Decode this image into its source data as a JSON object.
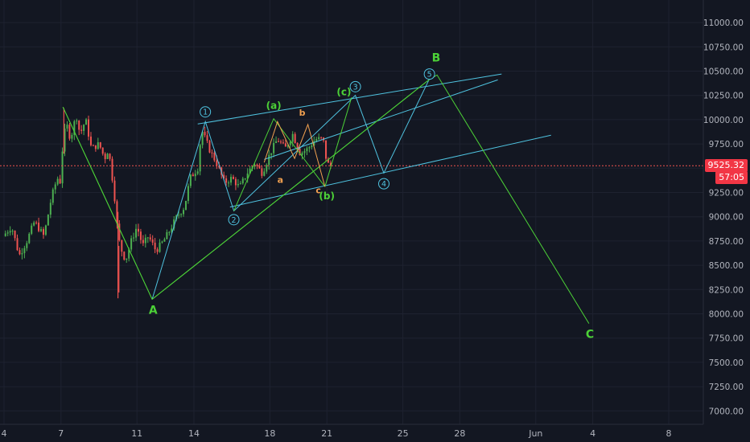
{
  "colors": {
    "background": "#131722",
    "grid": "#1e2230",
    "axis_text": "#b2b5be",
    "bull": "#26a69a",
    "bear": "#ef5350",
    "bull_bar": "#4caf50",
    "channel": "#4fc3e0",
    "green_wave": "#4cd137",
    "orange_wave": "#f0a050",
    "price_line": "#ef5350"
  },
  "last_price": "9525.32",
  "countdown": "57:05",
  "chart_data": {
    "type": "candlestick",
    "title": "",
    "ylim": [
      6930,
      11180
    ],
    "y_ticks": [
      "7000.00",
      "7250.00",
      "7500.00",
      "7750.00",
      "8000.00",
      "8250.00",
      "8500.00",
      "8750.00",
      "9000.00",
      "9250.00",
      "9500.00",
      "9750.00",
      "10000.00",
      "10250.00",
      "10500.00",
      "10750.00",
      "11000.00"
    ],
    "x_ticks": [
      {
        "label": "4",
        "day": 0
      },
      {
        "label": "7",
        "day": 3
      },
      {
        "label": "11",
        "day": 7
      },
      {
        "label": "14",
        "day": 10
      },
      {
        "label": "18",
        "day": 14
      },
      {
        "label": "21",
        "day": 17
      },
      {
        "label": "25",
        "day": 21
      },
      {
        "label": "28",
        "day": 24
      },
      {
        "label": "Jun",
        "day": 28
      },
      {
        "label": "4",
        "day": 31
      },
      {
        "label": "8",
        "day": 35
      }
    ],
    "price_path": [
      [
        -0.05,
        8800
      ],
      [
        0.4,
        8900
      ],
      [
        0.8,
        8600
      ],
      [
        1.2,
        8750
      ],
      [
        1.6,
        8950
      ],
      [
        2.1,
        8800
      ],
      [
        2.5,
        9200
      ],
      [
        2.8,
        9400
      ],
      [
        3.0,
        9350
      ],
      [
        3.1,
        9800
      ],
      [
        3.3,
        9950
      ],
      [
        3.5,
        9800
      ],
      [
        3.8,
        10050
      ],
      [
        4.0,
        9850
      ],
      [
        4.3,
        10000
      ],
      [
        4.6,
        9700
      ],
      [
        5.0,
        9750
      ],
      [
        5.3,
        9600
      ],
      [
        5.5,
        9700
      ],
      [
        5.8,
        9250
      ],
      [
        6.0,
        8800
      ],
      [
        6.2,
        8650
      ],
      [
        6.4,
        8550
      ],
      [
        6.7,
        8750
      ],
      [
        7.0,
        8900
      ],
      [
        7.3,
        8700
      ],
      [
        7.6,
        8800
      ],
      [
        8.0,
        8650
      ],
      [
        8.4,
        8750
      ],
      [
        8.7,
        8850
      ],
      [
        9.1,
        9000
      ],
      [
        9.5,
        9100
      ],
      [
        9.8,
        9400
      ],
      [
        10.2,
        9500
      ],
      [
        10.4,
        9900
      ],
      [
        10.8,
        9700
      ],
      [
        11.2,
        9550
      ],
      [
        11.6,
        9350
      ],
      [
        12.0,
        9400
      ],
      [
        12.4,
        9300
      ],
      [
        12.8,
        9450
      ],
      [
        13.2,
        9550
      ],
      [
        13.6,
        9450
      ],
      [
        14.0,
        9650
      ],
      [
        14.4,
        9800
      ],
      [
        14.8,
        9700
      ],
      [
        15.2,
        9850
      ],
      [
        15.6,
        9650
      ],
      [
        16.0,
        9700
      ],
      [
        16.4,
        9800
      ],
      [
        16.8,
        9800
      ],
      [
        17.0,
        9550
      ],
      [
        17.2,
        9525
      ]
    ],
    "wicks": [
      {
        "day": 6.0,
        "low": 8160,
        "high": 9050
      },
      {
        "day": 6.05,
        "low": 8220,
        "high": 8700
      },
      {
        "day": 3.15,
        "low": 9650,
        "high": 10120
      }
    ],
    "annotations": {
      "channel_lines": [
        [
          [
            10.2,
            9955
          ],
          [
            26.2,
            10470
          ]
        ],
        [
          [
            11.9,
            9100
          ],
          [
            28.8,
            9840
          ]
        ],
        [
          [
            13.7,
            9590
          ],
          [
            26.0,
            10410
          ]
        ]
      ],
      "cyan_path": [
        [
          7.8,
          8150
        ],
        [
          10.6,
          9980
        ],
        [
          12.1,
          9060
        ],
        [
          18.5,
          10250
        ],
        [
          20.0,
          9450
        ],
        [
          22.4,
          10420
        ]
      ],
      "green_paths": [
        [
          [
            3.1,
            10130
          ],
          [
            7.8,
            8150
          ],
          [
            22.3,
            10400
          ]
        ],
        [
          [
            3.1,
            10130
          ],
          [
            7.8,
            8150
          ],
          [
            22.3,
            10400
          ],
          [
            22.8,
            10460
          ],
          [
            30.8,
            7900
          ]
        ],
        [
          [
            16.9,
            9310
          ],
          [
            18.3,
            10230
          ]
        ],
        [
          [
            12.1,
            9060
          ],
          [
            14.2,
            10010
          ],
          [
            16.9,
            9310
          ]
        ]
      ],
      "orange_path": [
        [
          13.7,
          9560
        ],
        [
          14.4,
          9980
        ],
        [
          15.3,
          9600
        ],
        [
          16.0,
          9950
        ],
        [
          16.9,
          9310
        ]
      ],
      "wave_labels": [
        {
          "text": "A",
          "color": "green",
          "day": 7.85,
          "price": 8000,
          "size": 14
        },
        {
          "text": "B",
          "color": "green",
          "day": 22.75,
          "price": 10600,
          "size": 14
        },
        {
          "text": "C",
          "color": "green",
          "day": 30.85,
          "price": 7750,
          "size": 14
        },
        {
          "text": "(a)",
          "color": "green",
          "day": 14.2,
          "price": 10110,
          "size": 12
        },
        {
          "text": "(b)",
          "color": "green",
          "day": 17.0,
          "price": 9180,
          "size": 12
        },
        {
          "text": "(c)",
          "color": "green",
          "day": 17.9,
          "price": 10250,
          "size": 12
        },
        {
          "text": "a",
          "color": "orange",
          "day": 14.55,
          "price": 9350,
          "size": 11
        },
        {
          "text": "b",
          "color": "orange",
          "day": 15.7,
          "price": 10040,
          "size": 11
        },
        {
          "text": "c",
          "color": "orange",
          "day": 16.55,
          "price": 9240,
          "size": 11
        }
      ],
      "circle_labels": [
        {
          "text": "1",
          "day": 10.6,
          "price": 10080
        },
        {
          "text": "2",
          "day": 12.1,
          "price": 8970
        },
        {
          "text": "3",
          "day": 18.5,
          "price": 10340
        },
        {
          "text": "4",
          "day": 20.0,
          "price": 9340
        },
        {
          "text": "5",
          "day": 22.4,
          "price": 10470
        }
      ]
    }
  }
}
